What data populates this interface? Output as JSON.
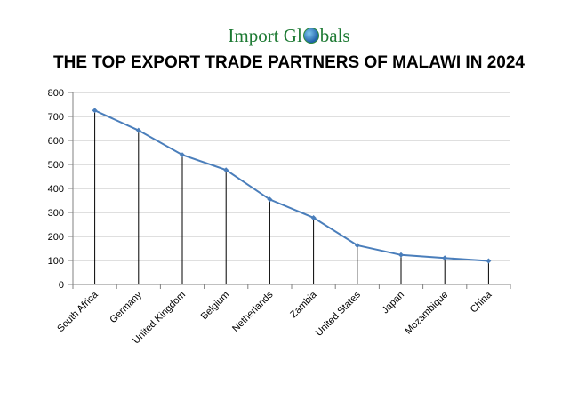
{
  "brand": {
    "prefix": "Import Gl",
    "suffix": "bals"
  },
  "chart_data": {
    "type": "line",
    "title": "THE TOP EXPORT TRADE PARTNERS OF MALAWI IN 2024",
    "categories": [
      "South Africa",
      "Germany",
      "United Kingdom",
      "Belgium",
      "Netherlands",
      "Zambia",
      "United States",
      "Japan",
      "Mozambique",
      "China"
    ],
    "values": [
      725,
      642,
      540,
      477,
      354,
      278,
      163,
      123,
      110,
      98
    ],
    "ylim": [
      0,
      800
    ],
    "yticks": [
      0,
      100,
      200,
      300,
      400,
      500,
      600,
      700,
      800
    ],
    "grid": true,
    "drop_lines": true,
    "colors": {
      "line": "#4a7ebb",
      "grid": "#bfbfbf",
      "axis": "#808080",
      "drop": "#000000"
    }
  }
}
